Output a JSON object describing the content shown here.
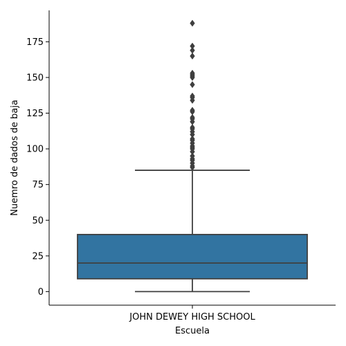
{
  "chart_data": {
    "type": "box",
    "xlabel": "Escuela",
    "ylabel": "Nuemro de dados de baja",
    "categories": [
      "JOHN DEWEY HIGH SCHOOL"
    ],
    "yticks": [
      0,
      25,
      50,
      75,
      100,
      125,
      150,
      175
    ],
    "ylim": [
      -9.5,
      197
    ],
    "grid": false,
    "legend": "none",
    "box": {
      "whisker_low": 0,
      "q1": 9,
      "median": 20,
      "q3": 40,
      "whisker_high": 85
    },
    "outliers": [
      87,
      88,
      90,
      92,
      93,
      95,
      98,
      100,
      101,
      102,
      104,
      106,
      107,
      110,
      112,
      114,
      115,
      119,
      121,
      122,
      126,
      127,
      134,
      136,
      137,
      145,
      150,
      151,
      152,
      153,
      165,
      169,
      172,
      188
    ],
    "colors": {
      "box": "#3274a1",
      "line": "#3f3f3f",
      "axis": "#000000"
    }
  }
}
